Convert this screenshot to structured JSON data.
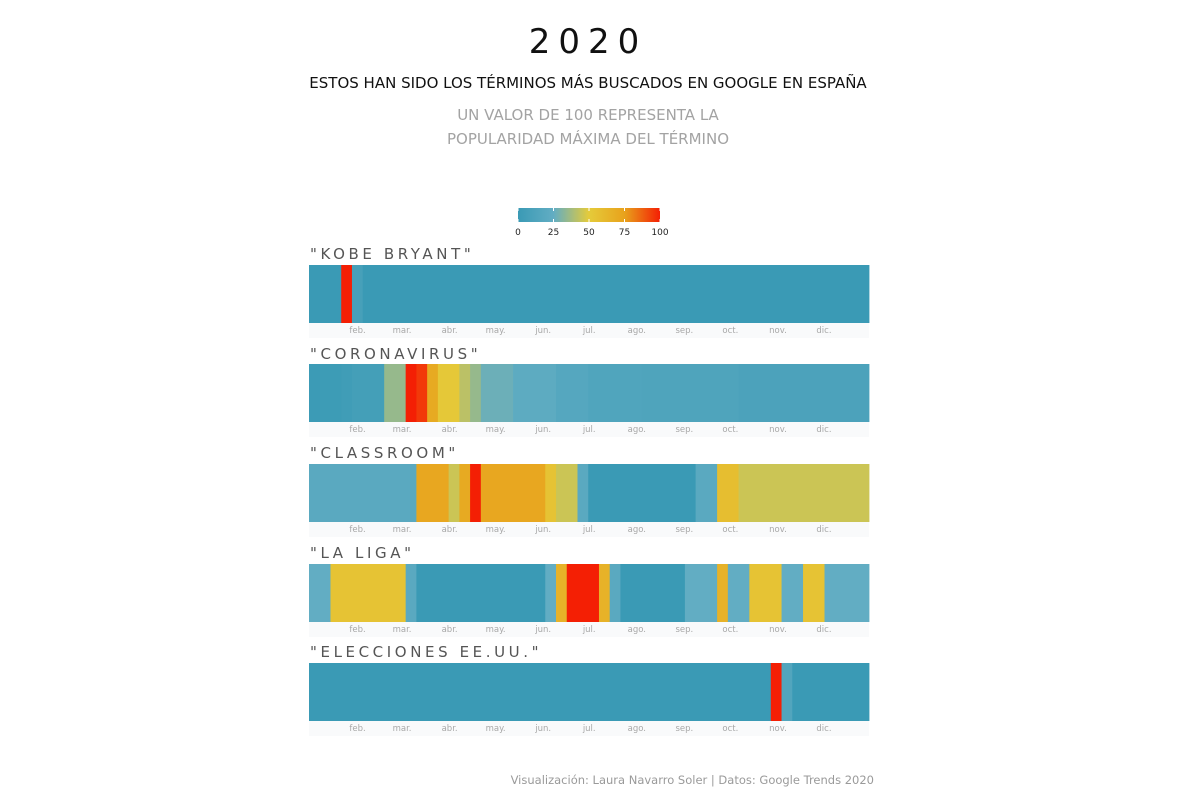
{
  "title": "2020",
  "subtitle": "ESTOS HAN SIDO LOS TÉRMINOS MÁS BUSCADOS EN GOOGLE EN ESPAÑA",
  "note_lines": [
    "UN VALOR DE 100 REPRESENTA LA",
    "POPULARIDAD MÁXIMA DEL TÉRMINO"
  ],
  "credit": "Visualización: Laura Navarro Soler | Datos: Google Trends 2020",
  "chart_data": {
    "type": "heatmap",
    "x_start": "2020-01-01",
    "x_end": "2020-12-31",
    "month_ticks": [
      {
        "label": "feb.",
        "date": "2020-02-01"
      },
      {
        "label": "mar.",
        "date": "2020-03-01"
      },
      {
        "label": "abr.",
        "date": "2020-04-01"
      },
      {
        "label": "may.",
        "date": "2020-05-01"
      },
      {
        "label": "jun.",
        "date": "2020-06-01"
      },
      {
        "label": "jul.",
        "date": "2020-07-01"
      },
      {
        "label": "ago.",
        "date": "2020-08-01"
      },
      {
        "label": "sep.",
        "date": "2020-09-01"
      },
      {
        "label": "oct.",
        "date": "2020-10-01"
      },
      {
        "label": "nov.",
        "date": "2020-11-01"
      },
      {
        "label": "dic.",
        "date": "2020-12-01"
      }
    ],
    "color_scale": {
      "ticks": [
        0,
        25,
        50,
        75,
        100
      ],
      "colors": [
        "#3a9ab5",
        "#62adc3",
        "#e5cb3a",
        "#e8a21c",
        "#f41f04"
      ]
    },
    "series": [
      {
        "name": "\"KOBE BRYANT\"",
        "data": [
          {
            "start": "2020-01-01",
            "end": "2020-01-22",
            "value": 0
          },
          {
            "start": "2020-01-22",
            "end": "2020-01-29",
            "value": 100
          },
          {
            "start": "2020-01-29",
            "end": "2020-02-05",
            "value": 8
          },
          {
            "start": "2020-02-05",
            "end": "2020-12-31",
            "value": 0
          }
        ]
      },
      {
        "name": "\"CORONAVIRUS\"",
        "data": [
          {
            "start": "2020-01-01",
            "end": "2020-01-08",
            "value": 1
          },
          {
            "start": "2020-01-08",
            "end": "2020-01-22",
            "value": 2
          },
          {
            "start": "2020-01-22",
            "end": "2020-01-29",
            "value": 4
          },
          {
            "start": "2020-01-29",
            "end": "2020-02-19",
            "value": 6
          },
          {
            "start": "2020-02-19",
            "end": "2020-03-04",
            "value": 35
          },
          {
            "start": "2020-03-04",
            "end": "2020-03-11",
            "value": 100
          },
          {
            "start": "2020-03-11",
            "end": "2020-03-18",
            "value": 95
          },
          {
            "start": "2020-03-18",
            "end": "2020-03-25",
            "value": 70
          },
          {
            "start": "2020-03-25",
            "end": "2020-04-08",
            "value": 52
          },
          {
            "start": "2020-04-08",
            "end": "2020-04-15",
            "value": 42
          },
          {
            "start": "2020-04-15",
            "end": "2020-04-22",
            "value": 35
          },
          {
            "start": "2020-04-22",
            "end": "2020-05-13",
            "value": 27
          },
          {
            "start": "2020-05-13",
            "end": "2020-06-10",
            "value": 22
          },
          {
            "start": "2020-06-10",
            "end": "2020-07-01",
            "value": 17
          },
          {
            "start": "2020-07-01",
            "end": "2020-08-05",
            "value": 14
          },
          {
            "start": "2020-08-05",
            "end": "2020-10-07",
            "value": 13
          },
          {
            "start": "2020-10-07",
            "end": "2020-12-31",
            "value": 11
          }
        ]
      },
      {
        "name": "\"CLASSROOM\"",
        "data": [
          {
            "start": "2020-01-01",
            "end": "2020-03-11",
            "value": 20
          },
          {
            "start": "2020-03-11",
            "end": "2020-04-01",
            "value": 72
          },
          {
            "start": "2020-04-01",
            "end": "2020-04-08",
            "value": 45
          },
          {
            "start": "2020-04-08",
            "end": "2020-04-15",
            "value": 70
          },
          {
            "start": "2020-04-15",
            "end": "2020-04-22",
            "value": 100
          },
          {
            "start": "2020-04-22",
            "end": "2020-06-03",
            "value": 72
          },
          {
            "start": "2020-06-03",
            "end": "2020-06-10",
            "value": 55
          },
          {
            "start": "2020-06-10",
            "end": "2020-06-24",
            "value": 45
          },
          {
            "start": "2020-06-24",
            "end": "2020-07-01",
            "value": 20
          },
          {
            "start": "2020-07-01",
            "end": "2020-09-09",
            "value": 0
          },
          {
            "start": "2020-09-09",
            "end": "2020-09-23",
            "value": 20
          },
          {
            "start": "2020-09-23",
            "end": "2020-10-07",
            "value": 58
          },
          {
            "start": "2020-10-07",
            "end": "2020-12-31",
            "value": 45
          }
        ]
      },
      {
        "name": "\"LA LIGA\"",
        "data": [
          {
            "start": "2020-01-01",
            "end": "2020-01-15",
            "value": 25
          },
          {
            "start": "2020-01-15",
            "end": "2020-03-04",
            "value": 55
          },
          {
            "start": "2020-03-04",
            "end": "2020-03-11",
            "value": 20
          },
          {
            "start": "2020-03-11",
            "end": "2020-06-03",
            "value": 0
          },
          {
            "start": "2020-06-03",
            "end": "2020-06-10",
            "value": 25
          },
          {
            "start": "2020-06-10",
            "end": "2020-06-17",
            "value": 65
          },
          {
            "start": "2020-06-17",
            "end": "2020-07-08",
            "value": 100
          },
          {
            "start": "2020-07-08",
            "end": "2020-07-15",
            "value": 65
          },
          {
            "start": "2020-07-15",
            "end": "2020-07-22",
            "value": 20
          },
          {
            "start": "2020-07-22",
            "end": "2020-09-02",
            "value": 0
          },
          {
            "start": "2020-09-02",
            "end": "2020-09-23",
            "value": 25
          },
          {
            "start": "2020-09-23",
            "end": "2020-09-30",
            "value": 65
          },
          {
            "start": "2020-09-30",
            "end": "2020-10-14",
            "value": 25
          },
          {
            "start": "2020-10-14",
            "end": "2020-11-04",
            "value": 55
          },
          {
            "start": "2020-11-04",
            "end": "2020-11-18",
            "value": 25
          },
          {
            "start": "2020-11-18",
            "end": "2020-12-02",
            "value": 55
          },
          {
            "start": "2020-12-02",
            "end": "2020-12-31",
            "value": 25
          }
        ]
      },
      {
        "name": "\"ELECCIONES EE.UU.\"",
        "data": [
          {
            "start": "2020-01-01",
            "end": "2020-10-28",
            "value": 0
          },
          {
            "start": "2020-10-28",
            "end": "2020-11-04",
            "value": 100
          },
          {
            "start": "2020-11-04",
            "end": "2020-11-11",
            "value": 15
          },
          {
            "start": "2020-11-11",
            "end": "2020-12-31",
            "value": 0
          }
        ]
      }
    ]
  }
}
